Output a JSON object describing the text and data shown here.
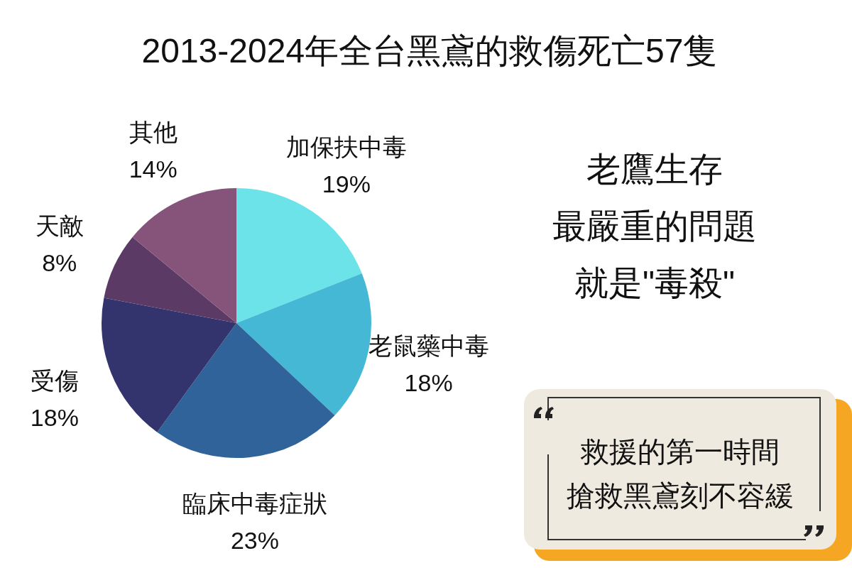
{
  "chart_data": {
    "type": "pie",
    "title": "2013-2024年全台黑鳶的救傷死亡57隻",
    "categories": [
      "加保扶中毒",
      "老鼠藥中毒",
      "臨床中毒症狀",
      "受傷",
      "天敵",
      "其他"
    ],
    "values": [
      19,
      18,
      23,
      18,
      8,
      14
    ],
    "value_labels": [
      "19%",
      "18%",
      "23%",
      "18%",
      "8%",
      "14%"
    ],
    "colors": [
      "#6be3e8",
      "#45b8d6",
      "#2f6399",
      "#33336e",
      "#5c3a66",
      "#86547a"
    ],
    "annotations": [
      "老鷹生存",
      "最嚴重的問題",
      "就是\"毒殺\"",
      "救援的第一時間",
      "搶救黑鳶刻不容緩"
    ]
  }
}
